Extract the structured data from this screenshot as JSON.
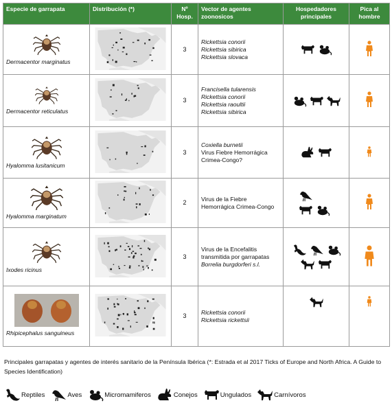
{
  "table": {
    "headers": {
      "species": "Especie de garrapata",
      "distribution": "Distribución (*)",
      "hosp": "Nº Hosp.",
      "agents": "Vector de agentes zoonosicos",
      "hosts": "Hospedadores principales",
      "bites": "Pica al hombre"
    },
    "rows": [
      {
        "species": "Dermacentor marginatus",
        "hosp": "3",
        "agents": [
          {
            "text": "Rickettsia conorii",
            "italic": true
          },
          {
            "text": "Rickettsia sibirica",
            "italic": true
          },
          {
            "text": "Rickettsia slovaca",
            "italic": true
          }
        ],
        "hosts": [
          "ungulados-icon",
          "micromamiferos-icon"
        ]
      },
      {
        "species": "Dermacentor reticulatus",
        "hosp": "3",
        "agents": [
          {
            "text": "Francisella tularensis",
            "italic": true
          },
          {
            "text": "Rickettsia conorii",
            "italic": true
          },
          {
            "text": "Rickettsia raoultii",
            "italic": true
          },
          {
            "text": "Rickettsia sibirica",
            "italic": true
          }
        ],
        "hosts": [
          "micromamiferos-icon",
          "ungulados-icon",
          "carnivoros-icon"
        ]
      },
      {
        "species": "Hyalomma lusitanicum",
        "hosp": "3",
        "agents": [
          {
            "text": "Coxiella burnetii",
            "italic": true
          },
          {
            "text": "Virus Fiebre Hemorrágica Crimea-Congo?",
            "italic": false
          }
        ],
        "hosts": [
          "conejos-icon",
          "ungulados-icon"
        ]
      },
      {
        "species": "Hyalomma marginatum",
        "hosp": "2",
        "agents": [
          {
            "text": "Virus de la Fiebre Hemorrágica Crimea-Congo",
            "italic": false
          }
        ],
        "hosts": [
          "aves-icon",
          "ungulados-icon",
          "micromamiferos-icon"
        ]
      },
      {
        "species": "Ixodes ricinus",
        "hosp": "3",
        "agents": [
          {
            "text": "Virus de la Encefalitis transmitida por garrapatas",
            "italic": false
          },
          {
            "text": "Borrelia burgdorferi s.l.",
            "italic": true
          }
        ],
        "hosts": [
          "reptiles-icon",
          "aves-icon",
          "micromamiferos-icon",
          "carnivoros-icon",
          "ungulados-icon"
        ]
      },
      {
        "species": "Rhipicephalus sanguineus",
        "hosp": "3",
        "agents": [
          {
            "text": "Rickettsia conorii",
            "italic": true
          },
          {
            "text": "Rickettsia rickettsii",
            "italic": true
          }
        ],
        "hosts": [
          "carnivoros-icon"
        ]
      }
    ]
  },
  "caption": "Principales garrapatas y agentes de interés sanitario de la Península Ibérica (*: Estrada et al 2017 Ticks of Europe and North Africa. A Guide to Species Identification)",
  "legend": [
    {
      "label": "Reptiles",
      "icon": "reptiles-icon"
    },
    {
      "label": "Aves",
      "icon": "aves-icon"
    },
    {
      "label": "Micromamiferos",
      "icon": "micromamiferos-icon"
    },
    {
      "label": "Conejos",
      "icon": "conejos-icon"
    },
    {
      "label": "Ungulados",
      "icon": "ungulados-icon"
    },
    {
      "label": "Carnívoros",
      "icon": "carnivoros-icon"
    }
  ],
  "colors": {
    "header_bg": "#3d8a3d",
    "person": "#f08a1c"
  }
}
